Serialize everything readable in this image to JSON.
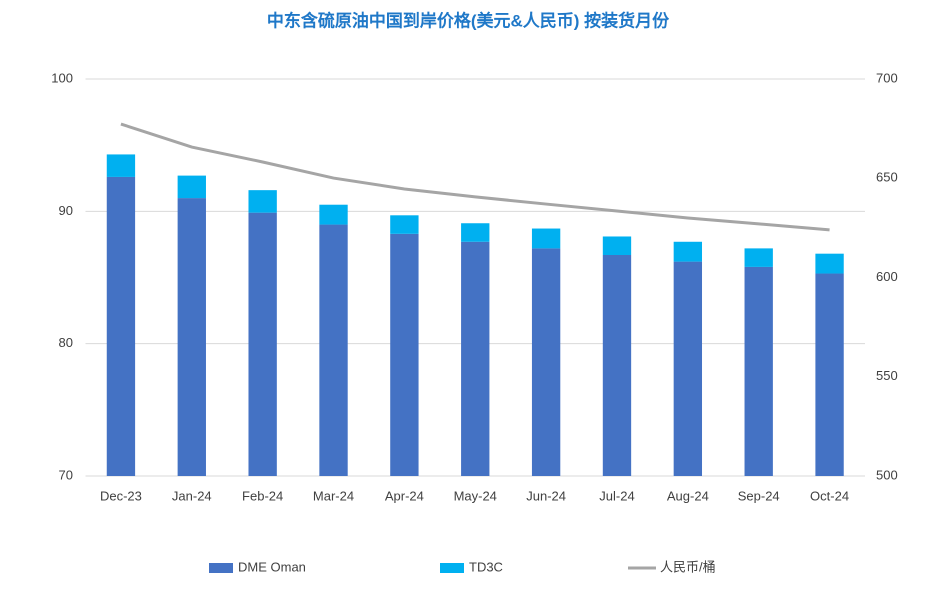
{
  "chart_data": {
    "type": "bar",
    "stacked": true,
    "title": "中东含硫原油中国到岸价格(美元&人民币) 按装货月份",
    "categories": [
      "Dec-23",
      "Jan-24",
      "Feb-24",
      "Mar-24",
      "Apr-24",
      "May-24",
      "Jun-24",
      "Jul-24",
      "Aug-24",
      "Sep-24",
      "Oct-24"
    ],
    "series": [
      {
        "name": "DME Oman",
        "color": "#4472c4",
        "values": [
          92.6,
          91.0,
          89.9,
          89.0,
          88.3,
          87.7,
          87.2,
          86.7,
          86.2,
          85.8,
          85.3
        ]
      },
      {
        "name": "TD3C",
        "color": "#00b0f0",
        "values": [
          1.7,
          1.7,
          1.7,
          1.5,
          1.4,
          1.4,
          1.5,
          1.4,
          1.5,
          1.4,
          1.5
        ]
      },
      {
        "name": "人民币/桶",
        "color": "#a5a5a5",
        "type": "line",
        "axis": "y2",
        "values": [
          677.3,
          665.7,
          658.2,
          650.1,
          644.6,
          640.6,
          637.0,
          633.5,
          630.0,
          627.0,
          624.0
        ]
      }
    ],
    "ylim": [
      70,
      100
    ],
    "yticks": [
      70,
      80,
      90,
      100
    ],
    "y2lim": [
      500,
      700
    ],
    "y2ticks": [
      500,
      550,
      600,
      650,
      700
    ],
    "grid": true,
    "legend": "bottom"
  }
}
